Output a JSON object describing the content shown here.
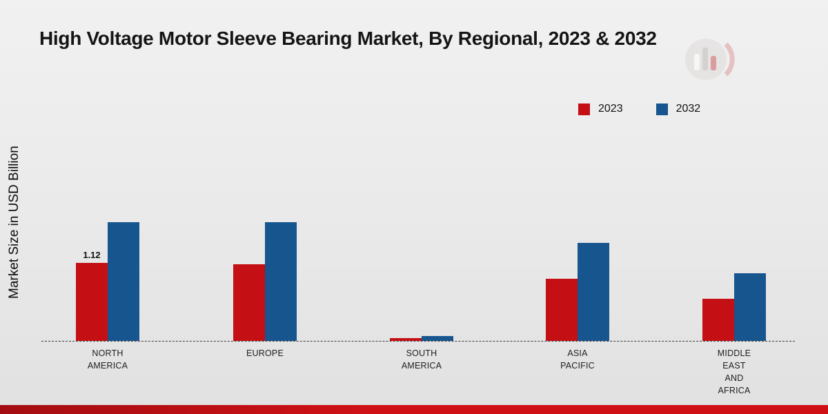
{
  "title": "High Voltage Motor Sleeve Bearing Market, By Regional, 2023 & 2032",
  "y_axis_label": "Market Size in USD Billion",
  "legend": [
    {
      "label": "2023",
      "color": "#c40f14"
    },
    {
      "label": "2032",
      "color": "#17558e"
    }
  ],
  "brand": {
    "footer_band_gradient_left": "#a30d11",
    "footer_band_gradient_right": "#cf1116"
  },
  "chart_data": {
    "type": "bar",
    "title": "High Voltage Motor Sleeve Bearing Market, By Regional, 2023 & 2032",
    "xlabel": "",
    "ylabel": "Market Size in USD Billion",
    "ylim": [
      0,
      2.0
    ],
    "grid": false,
    "legend_position": "top-right",
    "categories": [
      "NORTH AMERICA",
      "EUROPE",
      "SOUTH AMERICA",
      "ASIA PACIFIC",
      "MIDDLE EAST AND AFRICA"
    ],
    "category_lines": [
      [
        "NORTH",
        "AMERICA"
      ],
      [
        "EUROPE"
      ],
      [
        "SOUTH",
        "AMERICA"
      ],
      [
        "ASIA",
        "PACIFIC"
      ],
      [
        "MIDDLE",
        "EAST",
        "AND",
        "AFRICA"
      ]
    ],
    "series": [
      {
        "name": "2023",
        "color": "#c40f14",
        "values": [
          1.12,
          1.1,
          0.04,
          0.89,
          0.6
        ]
      },
      {
        "name": "2032",
        "color": "#17558e",
        "values": [
          1.7,
          1.7,
          0.07,
          1.41,
          0.97
        ]
      }
    ],
    "data_labels": [
      {
        "series": "2023",
        "category": "NORTH AMERICA",
        "text": "1.12"
      }
    ]
  }
}
